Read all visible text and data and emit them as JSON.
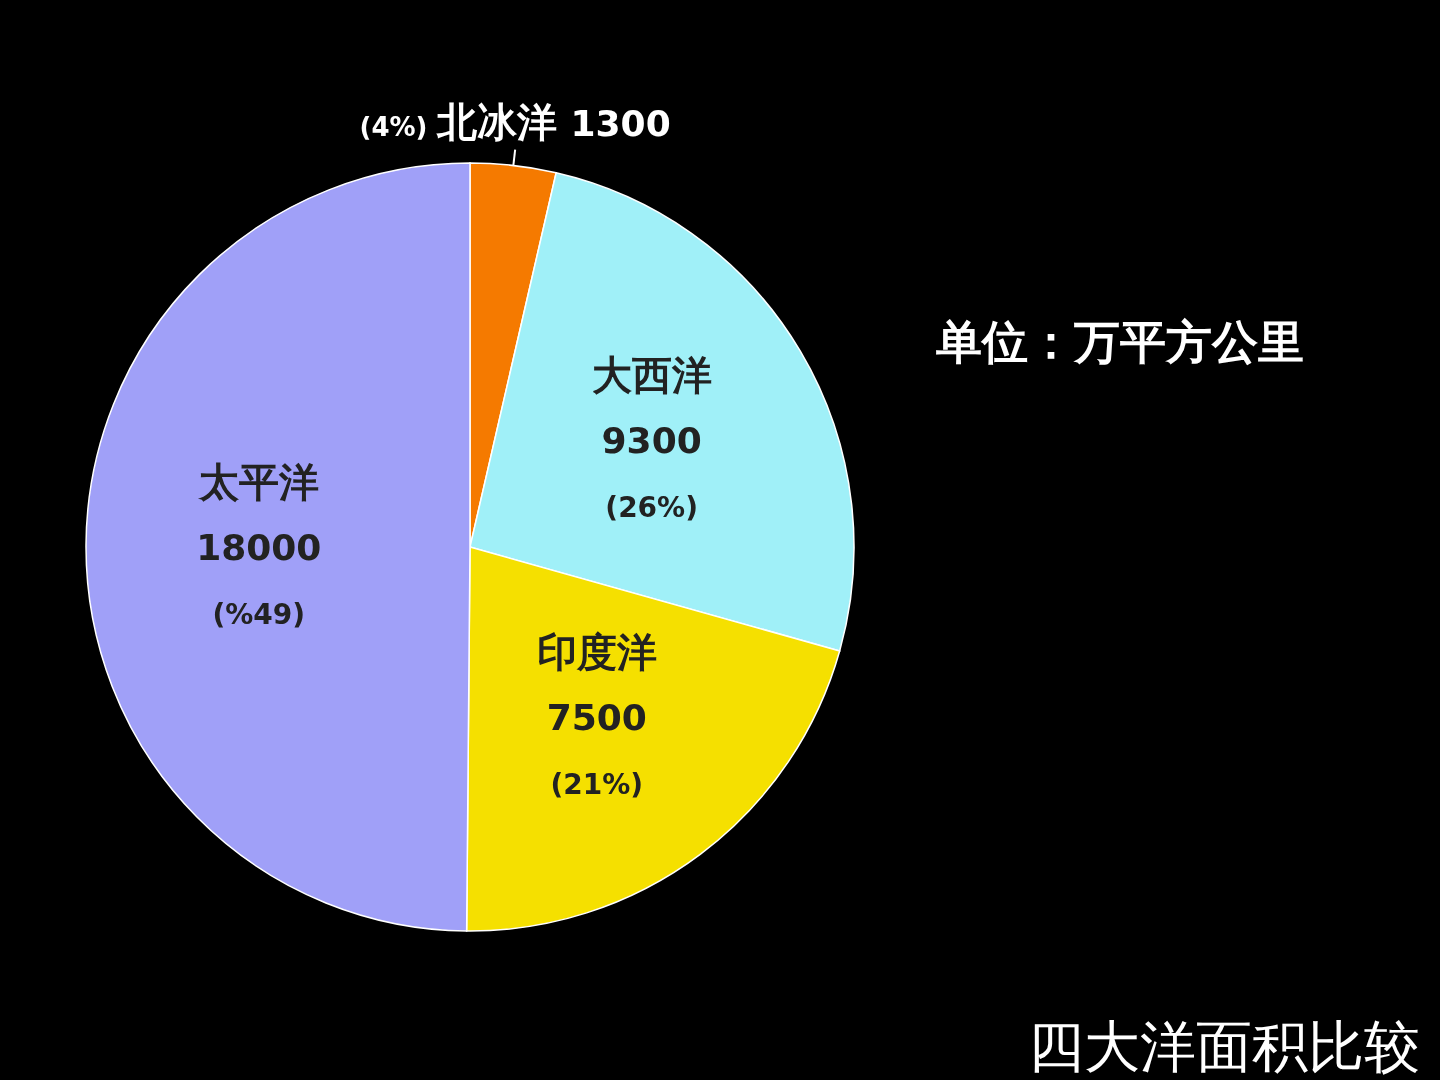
{
  "chart_data": {
    "type": "pie",
    "title": "四大洋面积比较",
    "categories": [
      "北冰洋",
      "大西洋",
      "印度洋",
      "太平洋"
    ],
    "values": [
      1300,
      9300,
      7500,
      18000
    ],
    "colors": [
      "#f57a00",
      "#a0f0f8",
      "#f5e000",
      "#a0a0f8"
    ],
    "data_labels": true,
    "annotations": [
      "单位：万平方公里",
      {
        "text": "(4%)",
        "x": "北冰洋"
      },
      {
        "text": "(26%)",
        "x": "大西洋"
      },
      {
        "text": "(21%)",
        "x": "印度洋"
      },
      {
        "text": "(%49)",
        "x": "太平洋"
      }
    ]
  }
}
